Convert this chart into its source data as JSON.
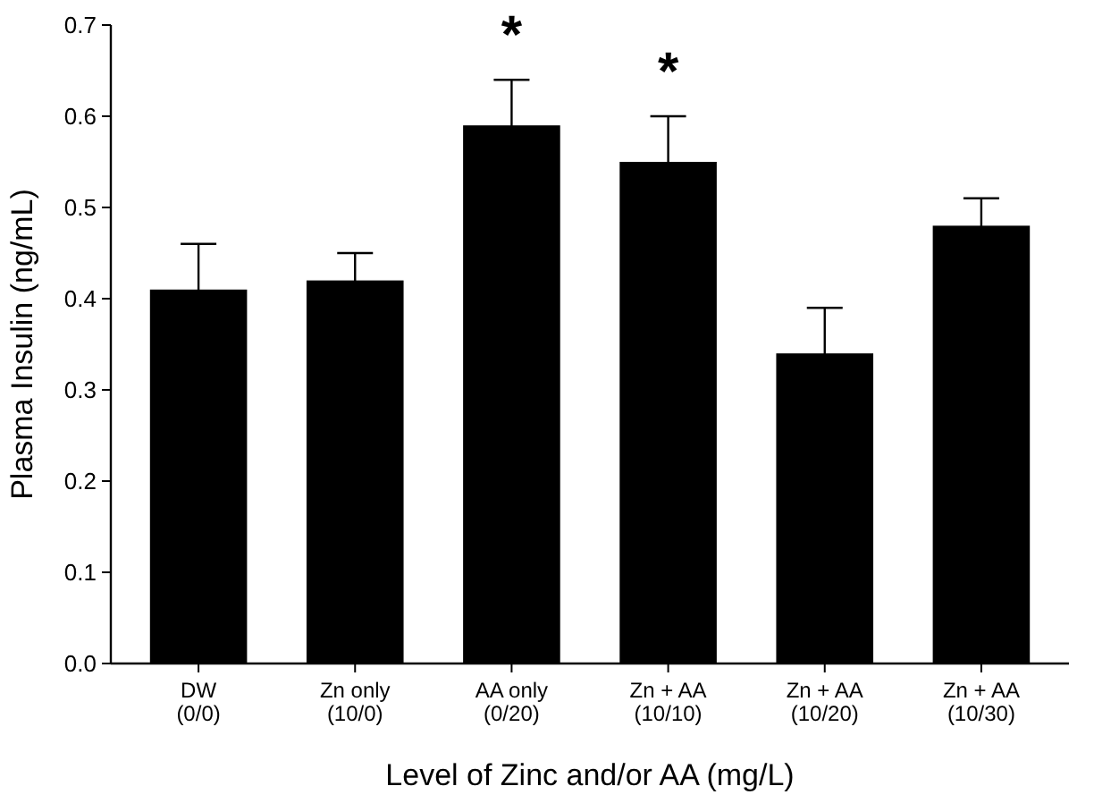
{
  "chart_data": {
    "type": "bar",
    "xlabel": "Level of Zinc and/or AA (mg/L)",
    "ylabel": "Plasma Insulin (ng/mL)",
    "categories": [
      "DW\n(0/0)",
      "Zn only\n(10/0)",
      "AA only\n(0/20)",
      "Zn + AA\n(10/10)",
      "Zn + AA\n(10/20)",
      "Zn + AA\n(10/30)"
    ],
    "values": [
      0.41,
      0.42,
      0.59,
      0.55,
      0.34,
      0.48
    ],
    "errors": [
      0.05,
      0.03,
      0.05,
      0.05,
      0.05,
      0.03
    ],
    "color": "#000000",
    "ylim": [
      0,
      0.7
    ],
    "yticks": [
      {
        "value": 0,
        "label": "0.0"
      },
      0.1,
      0.2,
      0.3,
      0.4,
      0.5,
      0.6,
      0.7
    ],
    "annotations": [
      {
        "text": "*",
        "x": "AA only\n(0/20)",
        "y": 0.64
      },
      {
        "text": "*",
        "x": "Zn + AA\n(10/10)",
        "y": 0.6
      }
    ],
    "grid": false
  }
}
